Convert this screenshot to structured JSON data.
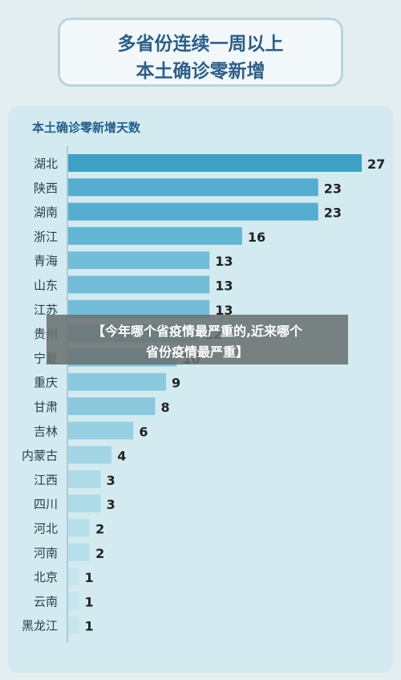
{
  "header": {
    "title_line1": "多省份连续一周以上",
    "title_line2": "本土确诊零新增"
  },
  "chart_data": {
    "type": "bar",
    "orientation": "horizontal",
    "title": "本土确诊零新增天数",
    "categories": [
      "湖北",
      "陕西",
      "湖南",
      "浙江",
      "青海",
      "山东",
      "江苏",
      "贵州",
      "宁夏",
      "重庆",
      "甘肃",
      "吉林",
      "内蒙古",
      "江西",
      "四川",
      "河北",
      "河南",
      "北京",
      "云南",
      "黑龙江"
    ],
    "values": [
      27,
      23,
      23,
      16,
      13,
      13,
      13,
      12,
      10,
      9,
      8,
      6,
      4,
      3,
      3,
      2,
      2,
      1,
      1,
      1
    ],
    "xlim": [
      0,
      27
    ],
    "colors": [
      "#3ea0c7",
      "#55aed0",
      "#55aed0",
      "#62b5d3",
      "#72bdd7",
      "#72bdd7",
      "#72bdd7",
      "#7ec3da",
      "#7ec3da",
      "#8ac9dd",
      "#8ac9dd",
      "#96cfe1",
      "#a2d5e5",
      "#addbe8",
      "#addbe8",
      "#b8e0eb",
      "#b8e0eb",
      "#c4e6ef",
      "#c4e6ef",
      "#c4e6ef"
    ]
  },
  "overlay": {
    "line1": "【今年哪个省疫情最严重的,近来哪个",
    "line2": "省份疫情最严重】"
  }
}
